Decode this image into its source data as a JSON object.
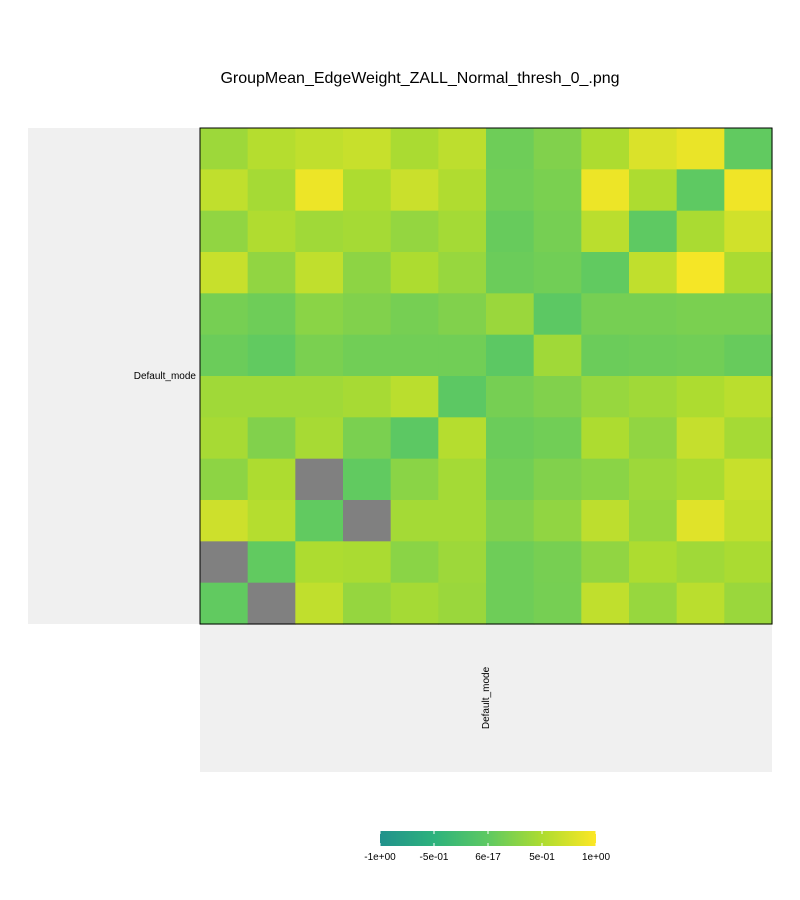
{
  "chart_data": {
    "type": "heatmap",
    "title": "GroupMean_EdgeWeight_ZALL_Normal_thresh_0_.png",
    "row_label": "Default_mode",
    "col_label": "Default_mode",
    "n_rows": 12,
    "n_cols": 12,
    "missing_color": "#808080",
    "value_range": [
      -1,
      1
    ],
    "colormap": [
      "#21918c",
      "#2db27d",
      "#5ec962",
      "#addc30",
      "#fde725"
    ],
    "matrix": [
      [
        0.4,
        0.55,
        0.62,
        0.66,
        0.48,
        0.6,
        0.1,
        0.22,
        0.5,
        0.78,
        0.88,
        0.02
      ],
      [
        0.62,
        0.45,
        0.9,
        0.5,
        0.68,
        0.52,
        0.12,
        0.18,
        0.9,
        0.5,
        0.0,
        0.92
      ],
      [
        0.32,
        0.52,
        0.42,
        0.45,
        0.34,
        0.44,
        0.06,
        0.15,
        0.58,
        0.0,
        0.48,
        0.72
      ],
      [
        0.66,
        0.32,
        0.62,
        0.3,
        0.5,
        0.36,
        0.08,
        0.12,
        0.02,
        0.62,
        0.95,
        0.48
      ],
      [
        0.15,
        0.1,
        0.28,
        0.22,
        0.15,
        0.22,
        0.38,
        -0.02,
        0.15,
        0.15,
        0.18,
        0.18
      ],
      [
        0.08,
        0.02,
        0.18,
        0.12,
        0.12,
        0.12,
        -0.02,
        0.42,
        0.08,
        0.1,
        0.12,
        0.06
      ],
      [
        0.42,
        0.42,
        0.42,
        0.46,
        0.58,
        -0.02,
        0.15,
        0.22,
        0.36,
        0.42,
        0.5,
        0.58
      ],
      [
        0.46,
        0.22,
        0.46,
        0.18,
        -0.02,
        0.55,
        0.08,
        0.12,
        0.5,
        0.32,
        0.65,
        0.45
      ],
      [
        0.3,
        0.5,
        null,
        0.02,
        0.28,
        0.44,
        0.12,
        0.22,
        0.28,
        0.4,
        0.48,
        0.66
      ],
      [
        0.7,
        0.55,
        0.02,
        null,
        0.44,
        0.44,
        0.22,
        0.32,
        0.6,
        0.36,
        0.82,
        0.62
      ],
      [
        null,
        0.02,
        0.5,
        0.48,
        0.28,
        0.4,
        0.1,
        0.16,
        0.32,
        0.5,
        0.42,
        0.48
      ],
      [
        0.02,
        null,
        0.62,
        0.35,
        0.45,
        0.38,
        0.1,
        0.15,
        0.62,
        0.36,
        0.58,
        0.38
      ]
    ],
    "legend": {
      "tick_labels": [
        "-1e+00",
        "-5e-01",
        "6e-17",
        "5e-01",
        "1e+00"
      ],
      "tick_values": [
        -1,
        -0.5,
        0,
        0.5,
        1
      ]
    }
  }
}
